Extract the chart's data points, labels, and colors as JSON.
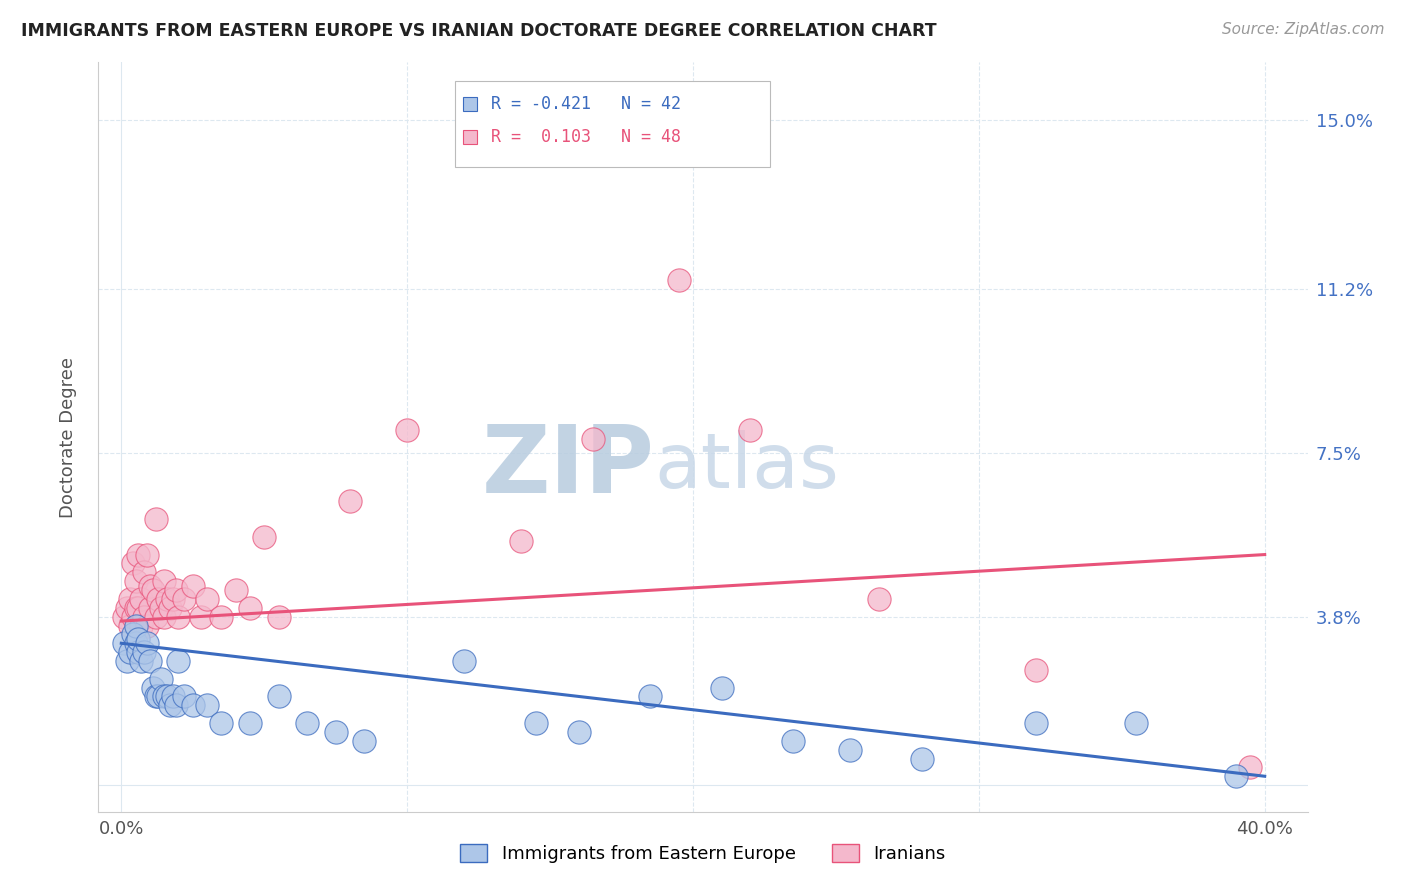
{
  "title": "IMMIGRANTS FROM EASTERN EUROPE VS IRANIAN DOCTORATE DEGREE CORRELATION CHART",
  "source": "Source: ZipAtlas.com",
  "ylabel": "Doctorate Degree",
  "legend_bottom": [
    "Immigrants from Eastern Europe",
    "Iranians"
  ],
  "legend_r_blue": "-0.421",
  "legend_n_blue": "42",
  "legend_r_pink": "0.103",
  "legend_n_pink": "48",
  "blue_color": "#adc6e8",
  "pink_color": "#f4b8cc",
  "blue_line_color": "#3b6bbf",
  "pink_line_color": "#e8537a",
  "right_axis_color": "#4472c4",
  "ytick_labels": [
    "",
    "3.8%",
    "7.5%",
    "11.2%",
    "15.0%"
  ],
  "ytick_values": [
    0.0,
    0.038,
    0.075,
    0.112,
    0.15
  ],
  "xtick_values": [
    0.0,
    0.1,
    0.2,
    0.3,
    0.4
  ],
  "xtick_labels": [
    "0.0%",
    "",
    "",
    "",
    "40.0%"
  ],
  "xlim": [
    -0.008,
    0.415
  ],
  "ylim": [
    -0.006,
    0.163
  ],
  "blue_scatter_x": [
    0.001,
    0.002,
    0.003,
    0.004,
    0.005,
    0.005,
    0.006,
    0.006,
    0.007,
    0.008,
    0.009,
    0.01,
    0.011,
    0.012,
    0.013,
    0.014,
    0.015,
    0.016,
    0.017,
    0.018,
    0.019,
    0.02,
    0.022,
    0.025,
    0.03,
    0.035,
    0.045,
    0.055,
    0.065,
    0.075,
    0.085,
    0.12,
    0.145,
    0.16,
    0.185,
    0.21,
    0.235,
    0.255,
    0.28,
    0.32,
    0.355,
    0.39
  ],
  "blue_scatter_y": [
    0.032,
    0.028,
    0.03,
    0.034,
    0.032,
    0.036,
    0.03,
    0.033,
    0.028,
    0.03,
    0.032,
    0.028,
    0.022,
    0.02,
    0.02,
    0.024,
    0.02,
    0.02,
    0.018,
    0.02,
    0.018,
    0.028,
    0.02,
    0.018,
    0.018,
    0.014,
    0.014,
    0.02,
    0.014,
    0.012,
    0.01,
    0.028,
    0.014,
    0.012,
    0.02,
    0.022,
    0.01,
    0.008,
    0.006,
    0.014,
    0.014,
    0.002
  ],
  "pink_scatter_x": [
    0.001,
    0.002,
    0.003,
    0.003,
    0.004,
    0.004,
    0.005,
    0.005,
    0.006,
    0.006,
    0.007,
    0.007,
    0.008,
    0.008,
    0.009,
    0.009,
    0.01,
    0.01,
    0.011,
    0.012,
    0.012,
    0.013,
    0.014,
    0.015,
    0.015,
    0.016,
    0.017,
    0.018,
    0.019,
    0.02,
    0.022,
    0.025,
    0.028,
    0.03,
    0.035,
    0.04,
    0.045,
    0.05,
    0.055,
    0.08,
    0.1,
    0.14,
    0.165,
    0.195,
    0.22,
    0.265,
    0.32,
    0.395
  ],
  "pink_scatter_y": [
    0.038,
    0.04,
    0.036,
    0.042,
    0.038,
    0.05,
    0.04,
    0.046,
    0.04,
    0.052,
    0.036,
    0.042,
    0.038,
    0.048,
    0.036,
    0.052,
    0.04,
    0.045,
    0.044,
    0.038,
    0.06,
    0.042,
    0.04,
    0.038,
    0.046,
    0.042,
    0.04,
    0.042,
    0.044,
    0.038,
    0.042,
    0.045,
    0.038,
    0.042,
    0.038,
    0.044,
    0.04,
    0.056,
    0.038,
    0.064,
    0.08,
    0.055,
    0.078,
    0.114,
    0.08,
    0.042,
    0.026,
    0.004
  ],
  "blue_trend_x": [
    0.0,
    0.4
  ],
  "blue_trend_y": [
    0.032,
    0.002
  ],
  "pink_trend_x": [
    0.0,
    0.4
  ],
  "pink_trend_y": [
    0.037,
    0.052
  ],
  "watermark_zip": "ZIP",
  "watermark_atlas": "atlas",
  "watermark_color": "#cdd9ee",
  "background_color": "#ffffff",
  "grid_color": "#dde8f0",
  "scatter_size": 280
}
